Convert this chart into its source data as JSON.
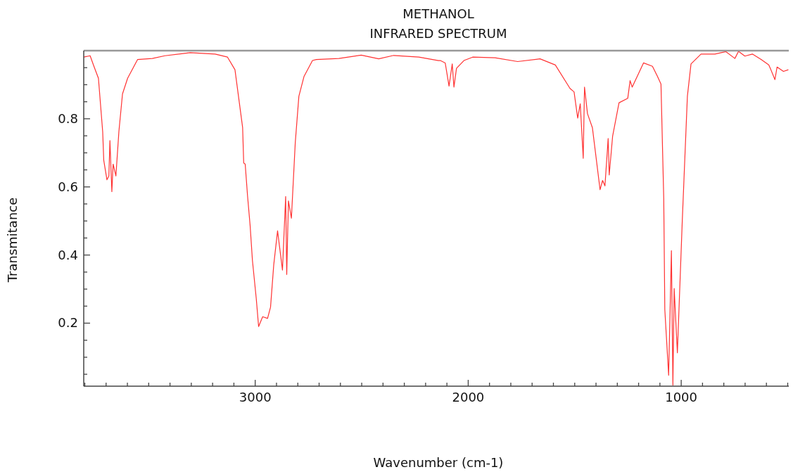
{
  "chart_data": {
    "type": "line",
    "title": "METHANOL",
    "subtitle": "INFRARED SPECTRUM",
    "xlabel": "Wavenumber (cm-1)",
    "ylabel": "Transmitance",
    "x": [
      3805,
      3775,
      3759,
      3736,
      3716,
      3711,
      3696,
      3687,
      3682,
      3673,
      3667,
      3654,
      3640,
      3623,
      3599,
      3552,
      3483,
      3424,
      3305,
      3188,
      3130,
      3095,
      3059,
      3054,
      3047,
      3036,
      3024,
      3013,
      2995,
      2984,
      2965,
      2942,
      2928,
      2913,
      2895,
      2872,
      2857,
      2852,
      2844,
      2830,
      2812,
      2795,
      2771,
      2731,
      2713,
      2607,
      2502,
      2420,
      2350,
      2232,
      2140,
      2131,
      2108,
      2090,
      2075,
      2067,
      2055,
      2020,
      1979,
      1874,
      1768,
      1663,
      1591,
      1522,
      1503,
      1486,
      1474,
      1460,
      1454,
      1440,
      1417,
      1381,
      1369,
      1358,
      1343,
      1338,
      1322,
      1292,
      1251,
      1240,
      1230,
      1194,
      1177,
      1135,
      1112,
      1095,
      1082,
      1077,
      1059,
      1046,
      1039,
      1033,
      1018,
      995,
      971,
      954,
      907,
      842,
      790,
      748,
      731,
      701,
      666,
      625,
      589,
      579,
      560,
      550,
      520,
      497
    ],
    "series": [
      {
        "color": "#ff3333",
        "values": [
          0.981,
          0.985,
          0.957,
          0.919,
          0.762,
          0.678,
          0.621,
          0.632,
          0.736,
          0.586,
          0.667,
          0.632,
          0.762,
          0.873,
          0.919,
          0.974,
          0.977,
          0.985,
          0.994,
          0.99,
          0.981,
          0.944,
          0.774,
          0.67,
          0.667,
          0.574,
          0.488,
          0.384,
          0.272,
          0.19,
          0.219,
          0.214,
          0.247,
          0.371,
          0.471,
          0.356,
          0.572,
          0.343,
          0.559,
          0.508,
          0.729,
          0.866,
          0.924,
          0.971,
          0.974,
          0.977,
          0.987,
          0.976,
          0.986,
          0.981,
          0.971,
          0.971,
          0.964,
          0.896,
          0.961,
          0.893,
          0.948,
          0.971,
          0.981,
          0.979,
          0.968,
          0.976,
          0.958,
          0.889,
          0.879,
          0.802,
          0.844,
          0.684,
          0.893,
          0.815,
          0.774,
          0.592,
          0.619,
          0.603,
          0.742,
          0.635,
          0.749,
          0.847,
          0.86,
          0.912,
          0.893,
          0.941,
          0.964,
          0.954,
          0.925,
          0.902,
          0.566,
          0.24,
          0.047,
          0.413,
          0.018,
          0.302,
          0.113,
          0.501,
          0.866,
          0.961,
          0.99,
          0.99,
          0.997,
          0.977,
          0.998,
          0.984,
          0.99,
          0.974,
          0.958,
          0.944,
          0.915,
          0.952,
          0.939,
          0.944
        ]
      }
    ],
    "xlim": [
      3805,
      495
    ],
    "ylim": [
      0.015,
      1.0
    ],
    "xticks": [
      {
        "value": 3800,
        "label": null
      },
      {
        "value": 3700,
        "label": null
      },
      {
        "value": 3600,
        "label": null
      },
      {
        "value": 3500,
        "label": null
      },
      {
        "value": 3400,
        "label": null
      },
      {
        "value": 3300,
        "label": null
      },
      {
        "value": 3200,
        "label": null
      },
      {
        "value": 3100,
        "label": null
      },
      3000,
      {
        "value": 2900,
        "label": null
      },
      {
        "value": 2800,
        "label": null
      },
      {
        "value": 2700,
        "label": null
      },
      {
        "value": 2600,
        "label": null
      },
      {
        "value": 2500,
        "label": null
      },
      {
        "value": 2400,
        "label": null
      },
      {
        "value": 2300,
        "label": null
      },
      {
        "value": 2200,
        "label": null
      },
      {
        "value": 2100,
        "label": null
      },
      2000,
      {
        "value": 1900,
        "label": null
      },
      {
        "value": 1800,
        "label": null
      },
      {
        "value": 1700,
        "label": null
      },
      {
        "value": 1600,
        "label": null
      },
      {
        "value": 1500,
        "label": null
      },
      {
        "value": 1400,
        "label": null
      },
      {
        "value": 1300,
        "label": null
      },
      {
        "value": 1200,
        "label": null
      },
      {
        "value": 1100,
        "label": null
      },
      1000,
      {
        "value": 900,
        "label": null
      },
      {
        "value": 800,
        "label": null
      },
      {
        "value": 700,
        "label": null
      },
      {
        "value": 600,
        "label": null
      },
      {
        "value": 500,
        "label": null
      }
    ],
    "yticks": [
      {
        "value": 0.05,
        "label": null
      },
      {
        "value": 0.1,
        "label": null
      },
      {
        "value": 0.15,
        "label": null
      },
      0.2,
      {
        "value": 0.25,
        "label": null
      },
      {
        "value": 0.3,
        "label": null
      },
      {
        "value": 0.35,
        "label": null
      },
      0.4,
      {
        "value": 0.45,
        "label": null
      },
      {
        "value": 0.5,
        "label": null
      },
      {
        "value": 0.55,
        "label": null
      },
      0.6,
      {
        "value": 0.65,
        "label": null
      },
      {
        "value": 0.7,
        "label": null
      },
      {
        "value": 0.75,
        "label": null
      },
      0.8,
      {
        "value": 0.85,
        "label": null
      },
      {
        "value": 0.9,
        "label": null
      },
      {
        "value": 0.95,
        "label": null
      }
    ],
    "grid": false,
    "legend": false,
    "marker": "none",
    "line_style": "solid"
  }
}
